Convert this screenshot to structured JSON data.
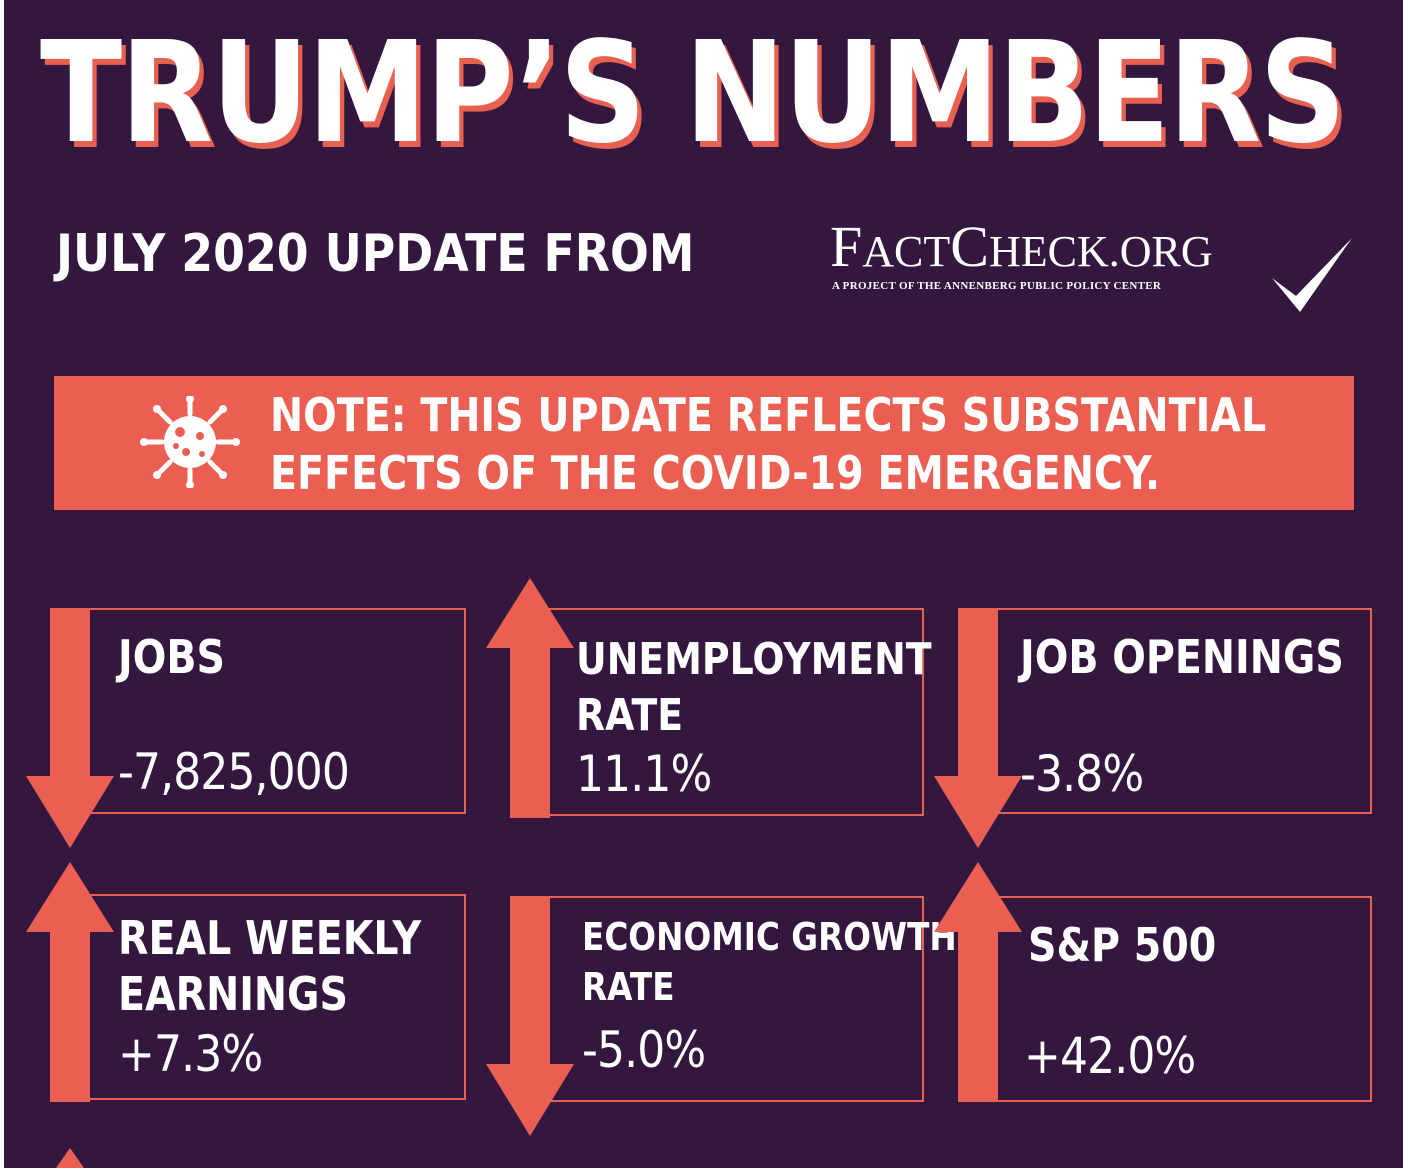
{
  "header": {
    "title": "TRUMP’S NUMBERS",
    "subtitle": "JULY 2020 UPDATE FROM"
  },
  "logo": {
    "main_parts": [
      "F",
      "ACT",
      "C",
      "HECK",
      ".ORG"
    ],
    "tagline": "A PROJECT OF THE ANNENBERG PUBLIC POLICY CENTER",
    "checkmark_icon": "checkmark-icon"
  },
  "note": {
    "icon": "virus-icon",
    "line1": "NOTE: THIS UPDATE REFLECTS SUBSTANTIAL",
    "line2": "EFFECTS OF THE COVID-19 EMERGENCY."
  },
  "stats": [
    {
      "label_lines": [
        "JOBS"
      ],
      "value": "-7,825,000",
      "direction": "down"
    },
    {
      "label_lines": [
        "UNEMPLOYMENT",
        "RATE"
      ],
      "value": "11.1%",
      "direction": "up"
    },
    {
      "label_lines": [
        "JOB OPENINGS"
      ],
      "value": "-3.8%",
      "direction": "down"
    },
    {
      "label_lines": [
        "REAL WEEKLY",
        "EARNINGS"
      ],
      "value": "+7.3%",
      "direction": "up"
    },
    {
      "label_lines": [
        "ECONOMIC GROWTH",
        "RATE"
      ],
      "value": "-5.0%",
      "direction": "down"
    },
    {
      "label_lines": [
        "S&P 500"
      ],
      "value": "+42.0%",
      "direction": "up"
    }
  ],
  "colors": {
    "background": "#34173f",
    "accent": "#ea5f52",
    "text": "#ffffff"
  }
}
